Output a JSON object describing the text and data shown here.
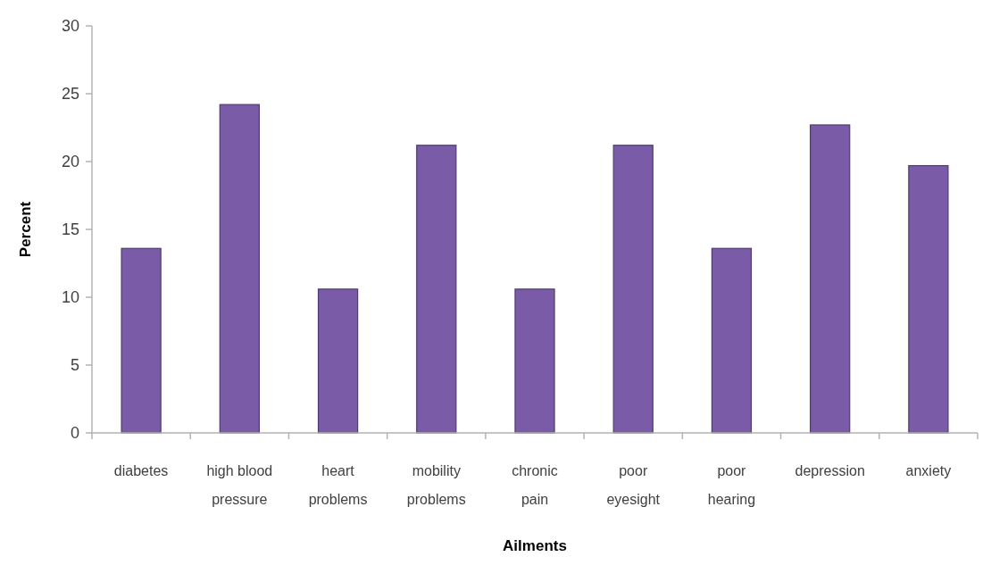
{
  "chart_data": {
    "type": "bar",
    "xlabel": "Ailments",
    "ylabel": "Percent",
    "categories": [
      "diabetes",
      "high blood pressure",
      "heart problems",
      "mobility problems",
      "chronic pain",
      "poor eyesight",
      "poor hearing",
      "depression",
      "anxiety"
    ],
    "values": [
      13.6,
      24.2,
      10.6,
      21.2,
      10.6,
      21.2,
      13.6,
      22.7,
      19.7
    ],
    "color": "#7a5ba8",
    "ylim": [
      0,
      30
    ],
    "yticks": [
      0,
      5,
      10,
      15,
      20,
      25,
      30
    ]
  }
}
